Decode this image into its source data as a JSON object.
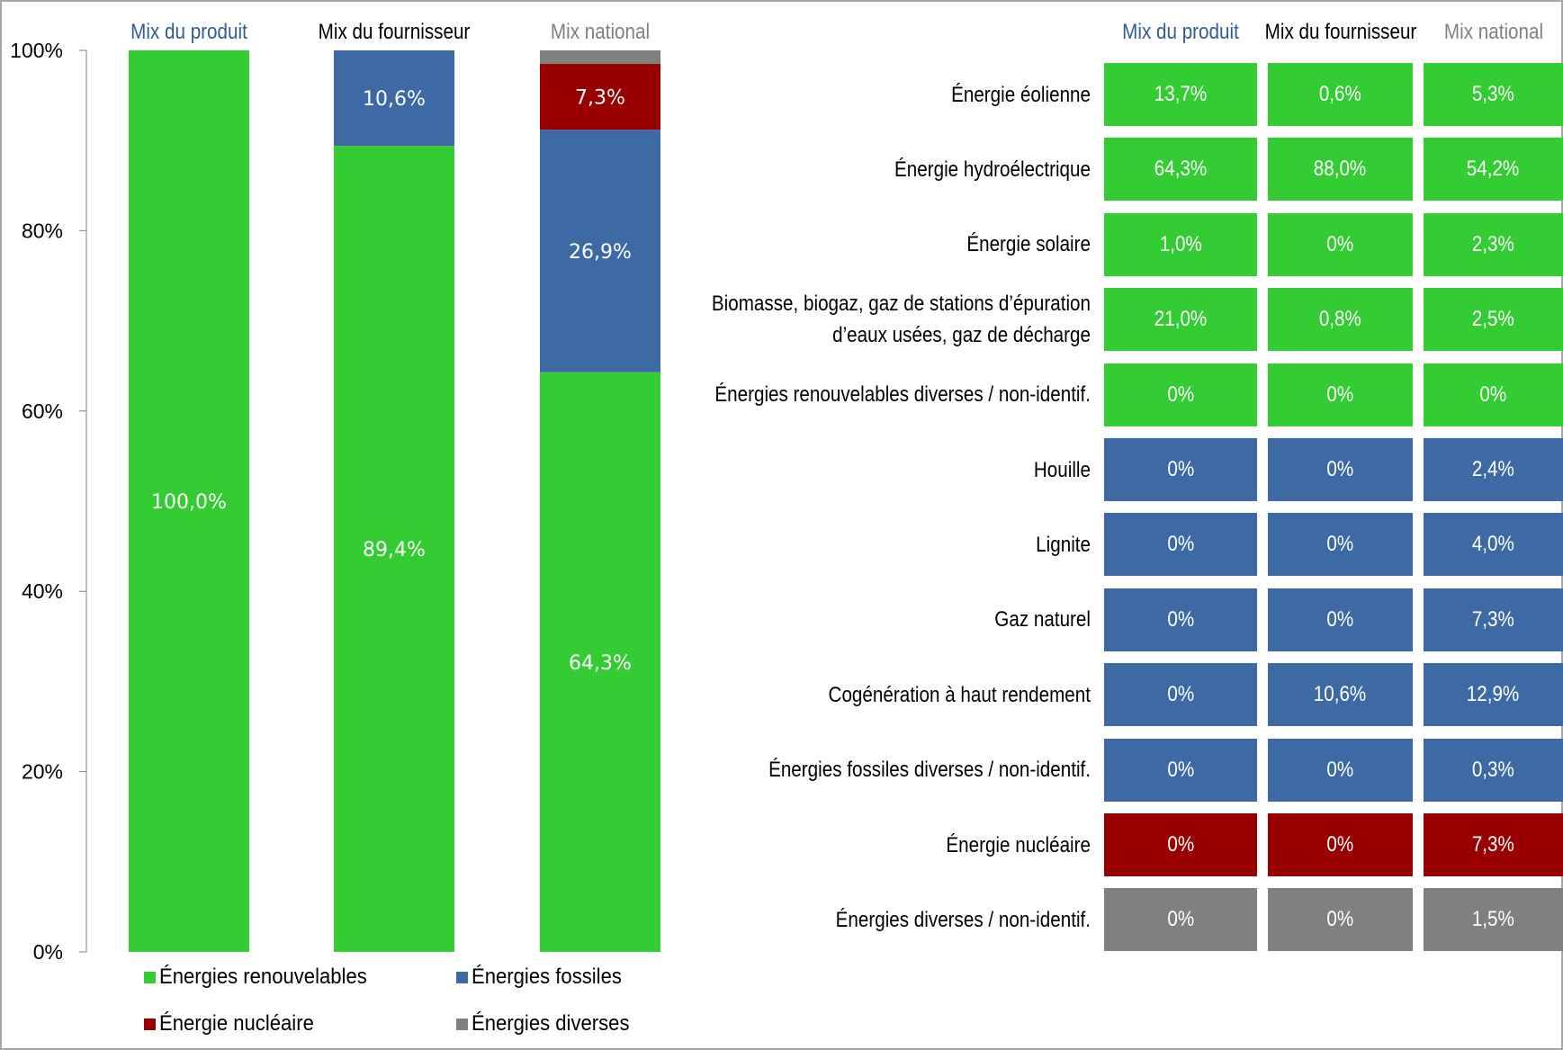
{
  "colors": {
    "renewable": "#33cc33",
    "fossil": "#3d6aa5",
    "nuclear": "#990000",
    "other": "#808080",
    "header_product": "#2f5b9a",
    "header_supplier": "#000000",
    "header_national": "#808080"
  },
  "chart_data": [
    {
      "type": "bar",
      "stacked": true,
      "categories": [
        "Mix du produit",
        "Mix du fournisseur",
        "Mix national"
      ],
      "series": [
        {
          "name": "Énergies renouvelables",
          "values": [
            100.0,
            89.4,
            64.3
          ],
          "labels": [
            "100,0%",
            "89,4%",
            "64,3%"
          ]
        },
        {
          "name": "Énergies fossiles",
          "values": [
            0,
            10.6,
            26.9
          ],
          "labels": [
            "",
            "10,6%",
            "26,9%"
          ]
        },
        {
          "name": "Énergie nucléaire",
          "values": [
            0,
            0,
            7.3
          ],
          "labels": [
            "",
            "",
            "7,3%"
          ]
        },
        {
          "name": "Énergies diverses",
          "values": [
            0,
            0,
            1.5
          ],
          "labels": [
            "",
            "",
            ""
          ]
        }
      ],
      "ylim": [
        0,
        100
      ],
      "yticks": [
        "0%",
        "20%",
        "40%",
        "60%",
        "80%",
        "100%"
      ],
      "legend_position": "bottom"
    },
    {
      "type": "table",
      "columns": [
        "Mix du produit",
        "Mix du fournisseur",
        "Mix national"
      ],
      "rows": [
        {
          "label": "Énergie éolienne",
          "label_lines": [
            "Énergie éolienne"
          ],
          "group": "renewable",
          "values": [
            "13,7%",
            "0,6%",
            "5,3%"
          ]
        },
        {
          "label": "Énergie hydroélectrique",
          "label_lines": [
            "Énergie hydroélectrique"
          ],
          "group": "renewable",
          "values": [
            "64,3%",
            "88,0%",
            "54,2%"
          ]
        },
        {
          "label": "Énergie solaire",
          "label_lines": [
            "Énergie solaire"
          ],
          "group": "renewable",
          "values": [
            "1,0%",
            "0%",
            "2,3%"
          ]
        },
        {
          "label": "Biomasse, biogaz, gaz de stations d’épuration d’eaux usées, gaz de décharge",
          "label_lines": [
            "Biomasse, biogaz, gaz de stations d’épuration",
            "d’eaux usées, gaz de décharge"
          ],
          "group": "renewable",
          "values": [
            "21,0%",
            "0,8%",
            "2,5%"
          ]
        },
        {
          "label": "Énergies renouvelables diverses / non-identif.",
          "label_lines": [
            "Énergies renouvelables diverses / non-identif."
          ],
          "group": "renewable",
          "values": [
            "0%",
            "0%",
            "0%"
          ]
        },
        {
          "label": "Houille",
          "label_lines": [
            "Houille"
          ],
          "group": "fossil",
          "values": [
            "0%",
            "0%",
            "2,4%"
          ]
        },
        {
          "label": "Lignite",
          "label_lines": [
            "Lignite"
          ],
          "group": "fossil",
          "values": [
            "0%",
            "0%",
            "4,0%"
          ]
        },
        {
          "label": "Gaz naturel",
          "label_lines": [
            "Gaz naturel"
          ],
          "group": "fossil",
          "values": [
            "0%",
            "0%",
            "7,3%"
          ]
        },
        {
          "label": "Cogénération à haut rendement",
          "label_lines": [
            "Cogénération à haut rendement"
          ],
          "group": "fossil",
          "values": [
            "0%",
            "10,6%",
            "12,9%"
          ]
        },
        {
          "label": "Énergies fossiles diverses / non-identif.",
          "label_lines": [
            "Énergies fossiles diverses / non-identif."
          ],
          "group": "fossil",
          "values": [
            "0%",
            "0%",
            "0,3%"
          ]
        },
        {
          "label": "Énergie nucléaire",
          "label_lines": [
            "Énergie nucléaire"
          ],
          "group": "nuclear",
          "values": [
            "0%",
            "0%",
            "7,3%"
          ]
        },
        {
          "label": "Énergies diverses / non-identif.",
          "label_lines": [
            "Énergies diverses / non-identif."
          ],
          "group": "other",
          "values": [
            "0%",
            "0%",
            "1,5%"
          ]
        }
      ]
    }
  ]
}
